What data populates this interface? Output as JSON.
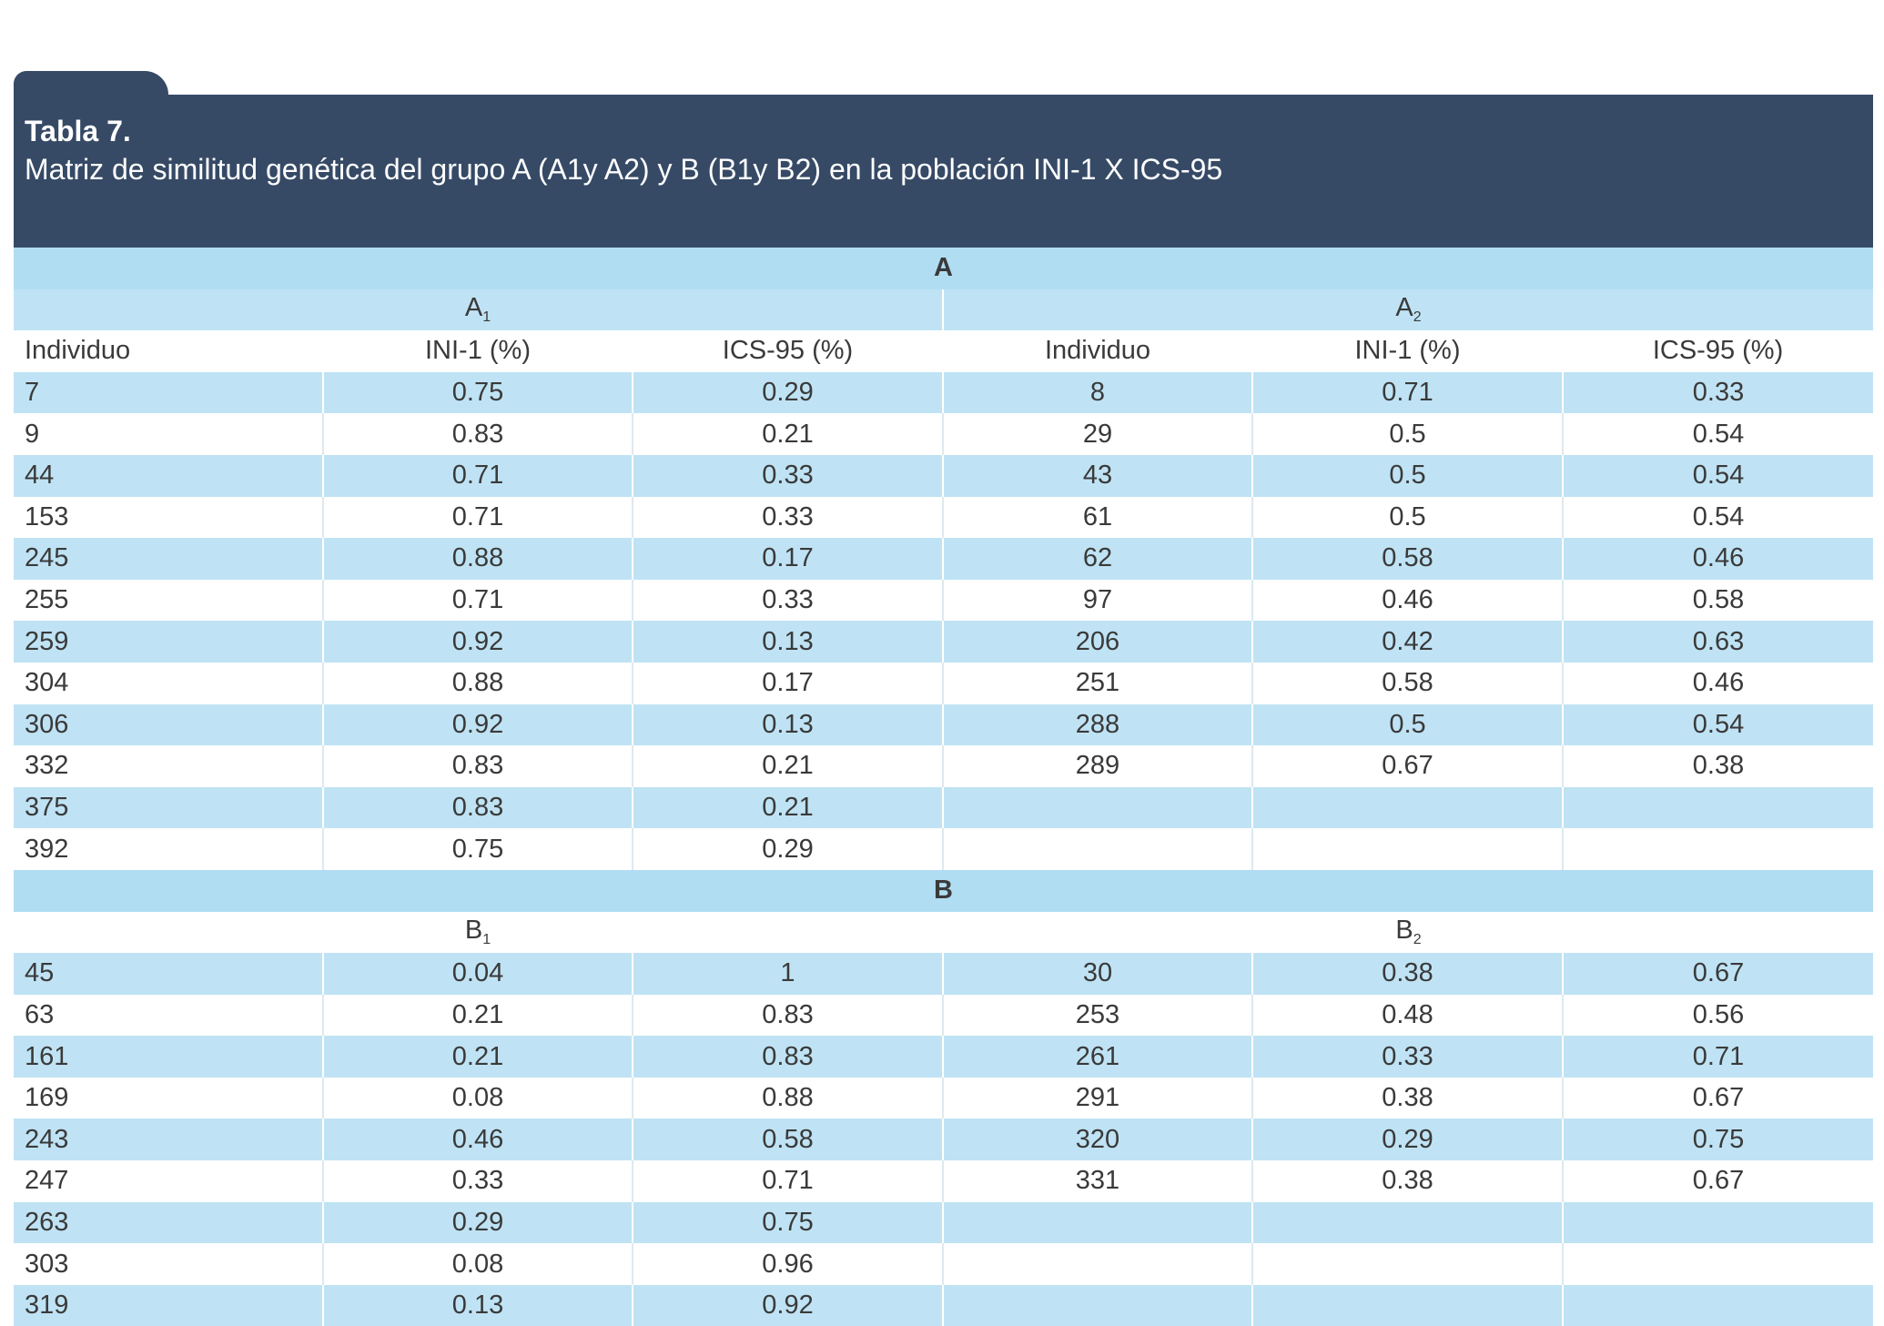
{
  "table": {
    "title": "Tabla 7.",
    "caption": "Matriz de similitud genética del grupo A (A1y A2) y B (B1y B2) en la población INI-1 X ICS-95",
    "columns": [
      "Individuo",
      "INI-1 (%)",
      "ICS-95 (%)",
      "Individuo",
      "INI-1 (%)",
      "ICS-95 (%)"
    ],
    "group_a": {
      "label": "A",
      "sub1": {
        "letter": "A",
        "index": "1"
      },
      "sub2": {
        "letter": "A",
        "index": "2"
      },
      "rows": [
        [
          "7",
          "0.75",
          "0.29",
          "8",
          "0.71",
          "0.33"
        ],
        [
          "9",
          "0.83",
          "0.21",
          "29",
          "0.5",
          "0.54"
        ],
        [
          "44",
          "0.71",
          "0.33",
          "43",
          "0.5",
          "0.54"
        ],
        [
          "153",
          "0.71",
          "0.33",
          "61",
          "0.5",
          "0.54"
        ],
        [
          "245",
          "0.88",
          "0.17",
          "62",
          "0.58",
          "0.46"
        ],
        [
          "255",
          "0.71",
          "0.33",
          "97",
          "0.46",
          "0.58"
        ],
        [
          "259",
          "0.92",
          "0.13",
          "206",
          "0.42",
          "0.63"
        ],
        [
          "304",
          "0.88",
          "0.17",
          "251",
          "0.58",
          "0.46"
        ],
        [
          "306",
          "0.92",
          "0.13",
          "288",
          "0.5",
          "0.54"
        ],
        [
          "332",
          "0.83",
          "0.21",
          "289",
          "0.67",
          "0.38"
        ],
        [
          "375",
          "0.83",
          "0.21",
          "",
          "",
          ""
        ],
        [
          "392",
          "0.75",
          "0.29",
          "",
          "",
          ""
        ]
      ]
    },
    "group_b": {
      "label": "B",
      "sub1": {
        "letter": "B",
        "index": "1"
      },
      "sub2": {
        "letter": "B",
        "index": "2"
      },
      "rows": [
        [
          "45",
          "0.04",
          "1",
          "30",
          "0.38",
          "0.67"
        ],
        [
          "63",
          "0.21",
          "0.83",
          "253",
          "0.48",
          "0.56"
        ],
        [
          "161",
          "0.21",
          "0.83",
          "261",
          "0.33",
          "0.71"
        ],
        [
          "169",
          "0.08",
          "0.88",
          "291",
          "0.38",
          "0.67"
        ],
        [
          "243",
          "0.46",
          "0.58",
          "320",
          "0.29",
          "0.75"
        ],
        [
          "247",
          "0.33",
          "0.71",
          "331",
          "0.38",
          "0.67"
        ],
        [
          "263",
          "0.29",
          "0.75",
          "",
          "",
          ""
        ],
        [
          "303",
          "0.08",
          "0.96",
          "",
          "",
          ""
        ],
        [
          "319",
          "0.13",
          "0.92",
          "",
          "",
          ""
        ]
      ]
    }
  },
  "colors": {
    "header_bg": "#364a66",
    "band_bg": "#b1ddf2",
    "row_blue": "#bfe3f4",
    "row_white": "#ffffff",
    "text": "#3a3a3a"
  }
}
